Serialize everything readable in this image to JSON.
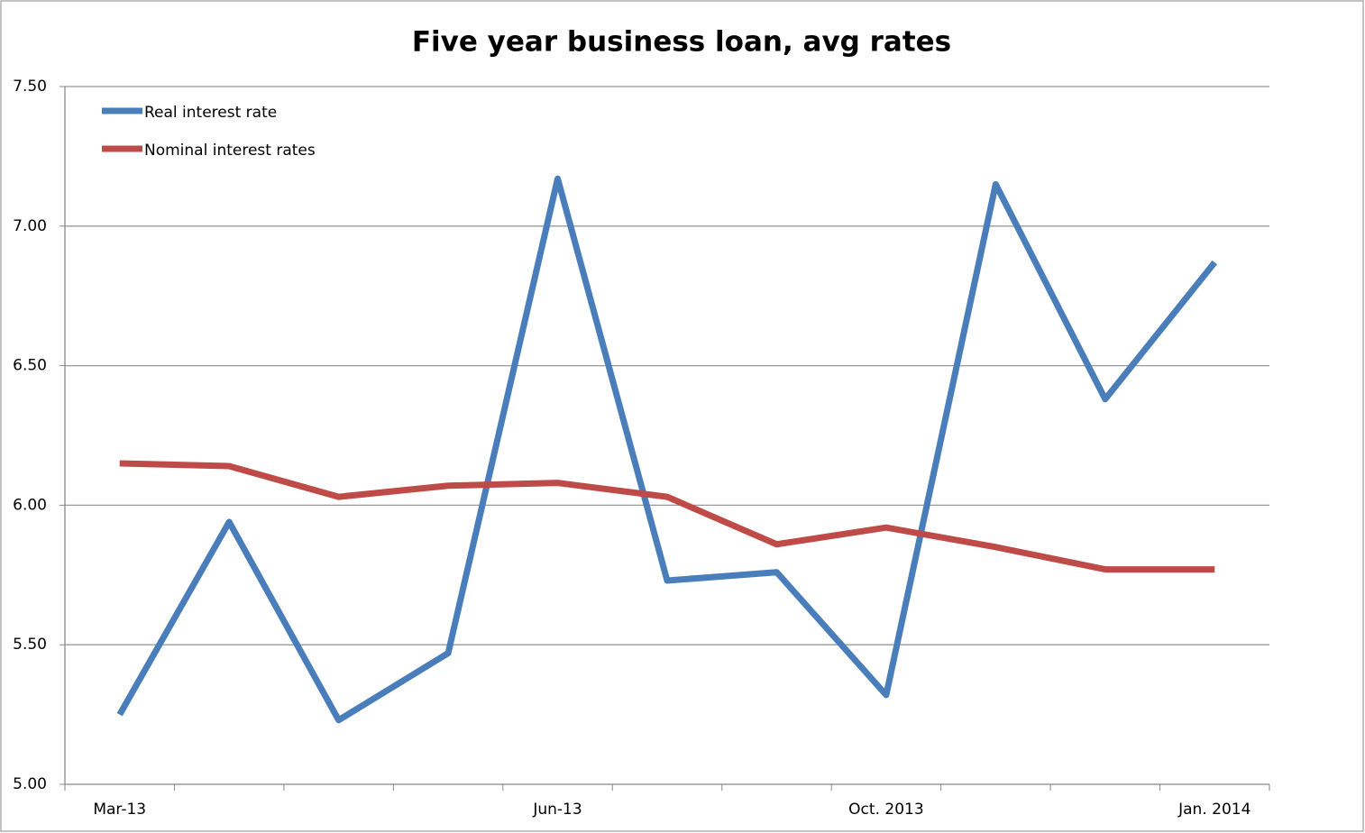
{
  "chart_data": {
    "type": "line",
    "title": "Five year business loan, avg rates",
    "categories": [
      "Mar-13",
      null,
      null,
      null,
      "Jun-13",
      null,
      null,
      "Oct. 2013",
      null,
      null,
      "Jan. 2014"
    ],
    "series": [
      {
        "name": "Real interest rate",
        "color": "#4a7ebb",
        "values": [
          5.25,
          5.94,
          5.23,
          5.47,
          7.17,
          5.73,
          5.76,
          5.32,
          7.15,
          6.38,
          6.87
        ]
      },
      {
        "name": "Nominal interest rates",
        "color": "#be4b48",
        "values": [
          6.15,
          6.14,
          6.03,
          6.07,
          6.08,
          6.03,
          5.86,
          5.92,
          5.85,
          5.77,
          5.77
        ]
      }
    ],
    "ylim": [
      5.0,
      7.5
    ],
    "yticks": [
      {
        "value": 5.0,
        "label": "5.00"
      },
      {
        "value": 5.5,
        "label": "5.50"
      },
      {
        "value": 6.0,
        "label": "6.00"
      },
      {
        "value": 6.5,
        "label": "6.50"
      },
      {
        "value": 7.0,
        "label": "7.00"
      },
      {
        "value": 7.5,
        "label": "7.50"
      }
    ],
    "grid": true,
    "legend": "top-left"
  }
}
